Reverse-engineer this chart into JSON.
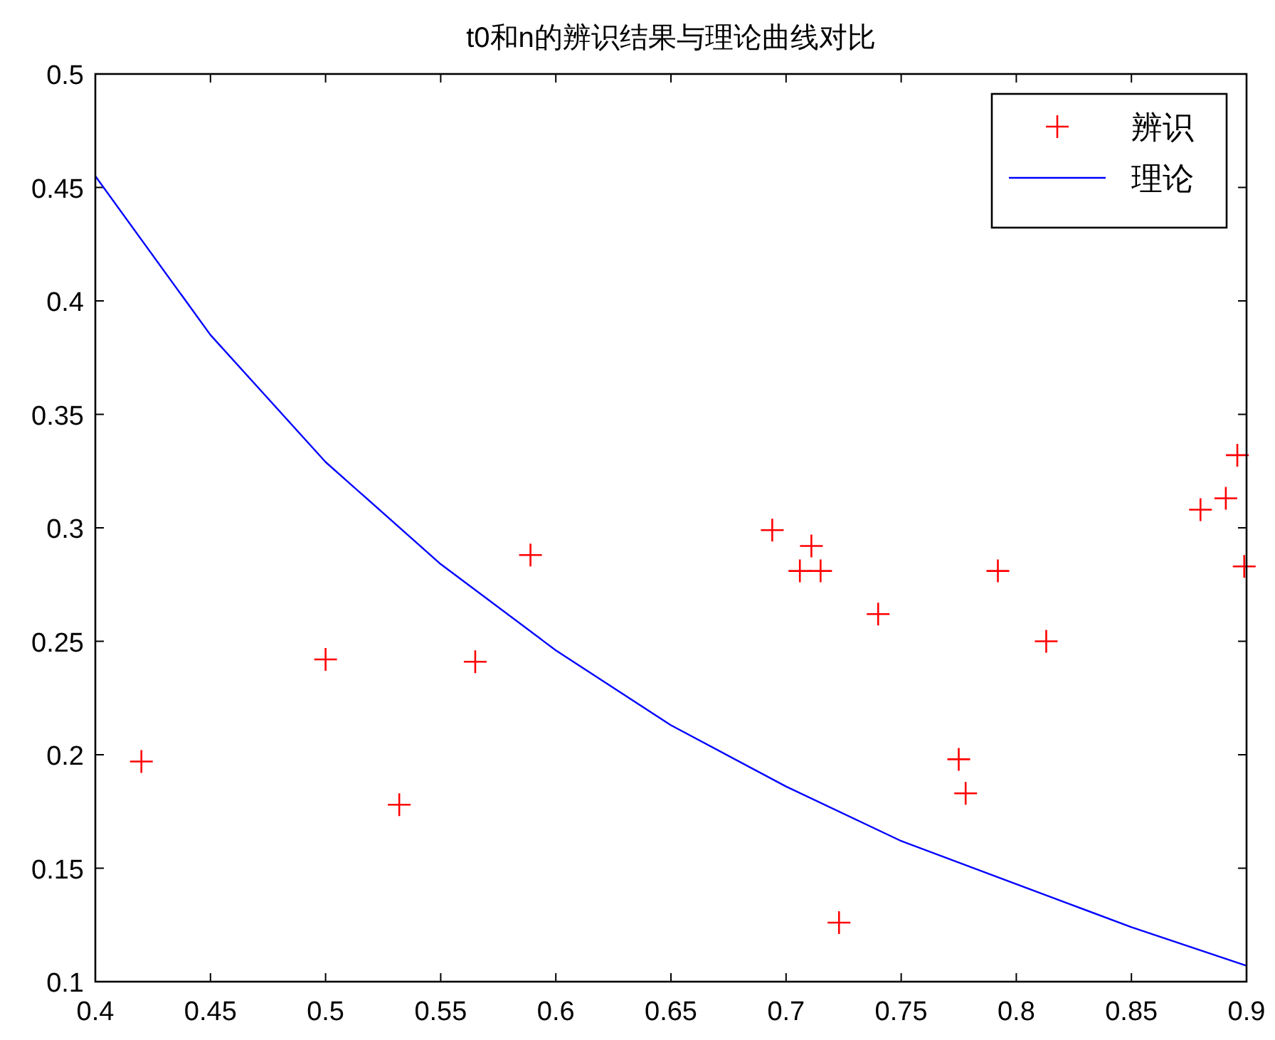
{
  "chart_data": {
    "type": "scatter",
    "title": "t0和n的辨识结果与理论曲线对比",
    "xlim": [
      0.4,
      0.9
    ],
    "ylim": [
      0.1,
      0.5
    ],
    "xticks": [
      0.4,
      0.45,
      0.5,
      0.55,
      0.6,
      0.65,
      0.7,
      0.75,
      0.8,
      0.85,
      0.9
    ],
    "yticks": [
      0.1,
      0.15,
      0.2,
      0.25,
      0.3,
      0.35,
      0.4,
      0.45,
      0.5
    ],
    "grid": false,
    "legend": "top right",
    "series": [
      {
        "name": "辨识",
        "type": "scatter",
        "marker": "cross",
        "color": "#ff0000",
        "x": [
          0.42,
          0.5,
          0.532,
          0.565,
          0.589,
          0.694,
          0.711,
          0.706,
          0.715,
          0.74,
          0.792,
          0.813,
          0.775,
          0.778,
          0.723,
          0.88,
          0.891,
          0.899,
          0.896
        ],
        "values": [
          0.197,
          0.242,
          0.178,
          0.241,
          0.288,
          0.299,
          0.292,
          0.281,
          0.281,
          0.262,
          0.281,
          0.25,
          0.198,
          0.183,
          0.126,
          0.308,
          0.313,
          0.283,
          0.332
        ]
      },
      {
        "name": "理论",
        "type": "line",
        "marker": "none",
        "line_style": "solid",
        "color": "#0000ff",
        "x": [
          0.4,
          0.45,
          0.5,
          0.55,
          0.6,
          0.65,
          0.7,
          0.75,
          0.8,
          0.85,
          0.9
        ],
        "values": [
          0.455,
          0.385,
          0.329,
          0.284,
          0.246,
          0.213,
          0.186,
          0.162,
          0.143,
          0.124,
          0.107
        ]
      }
    ]
  }
}
